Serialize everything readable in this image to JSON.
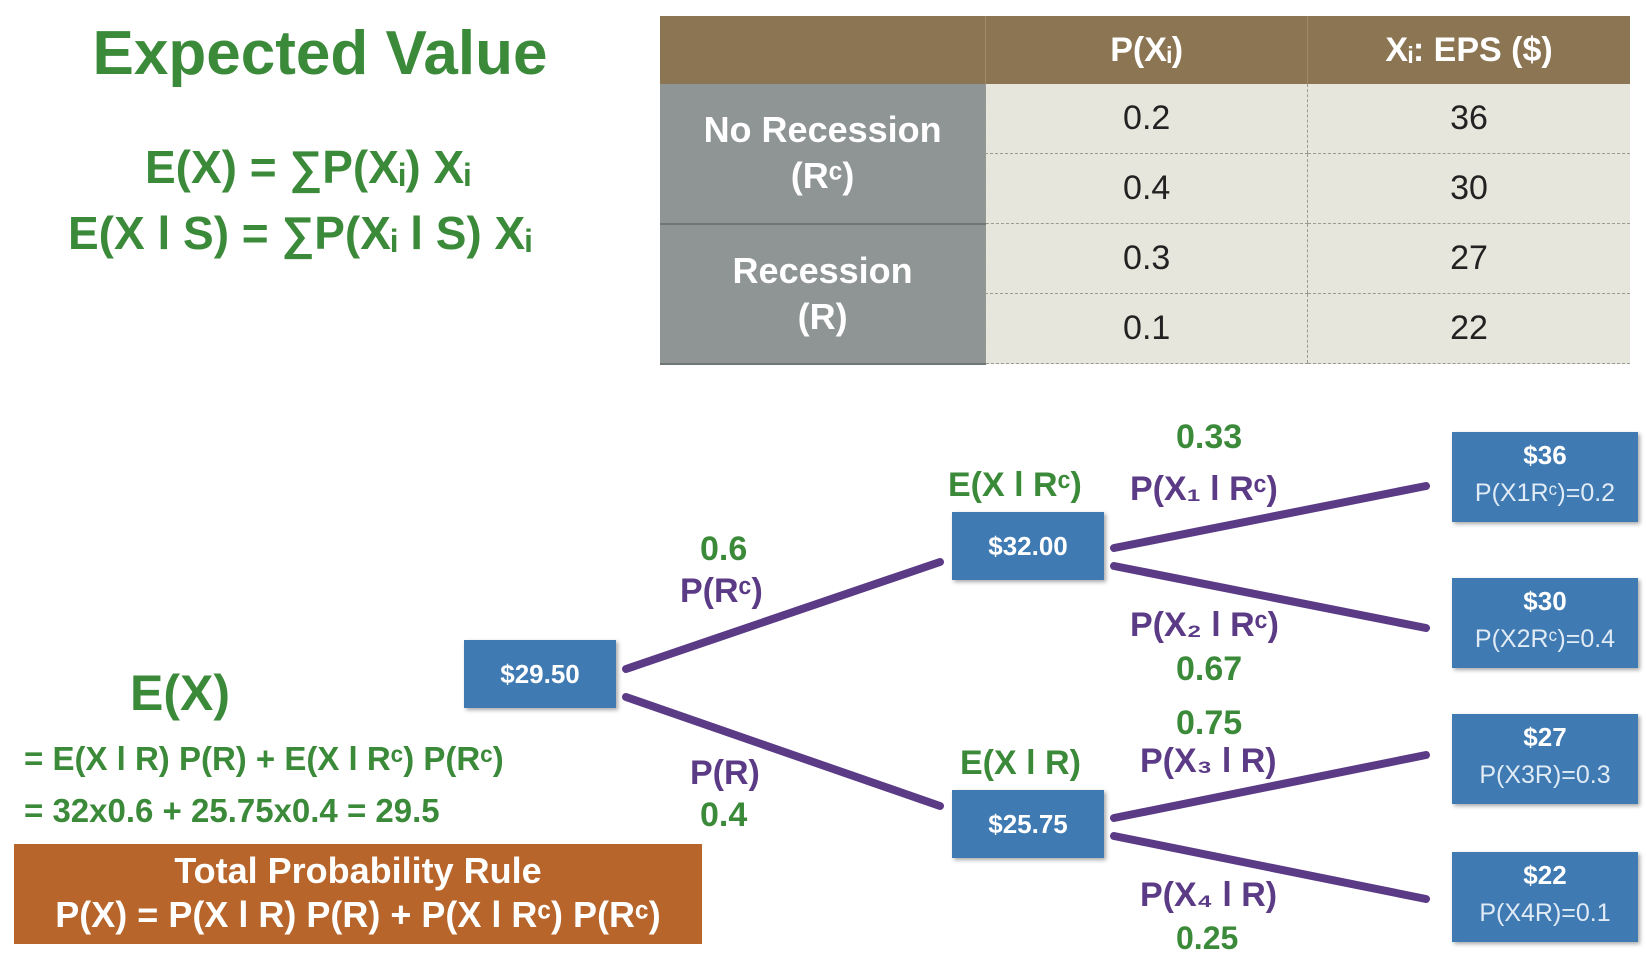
{
  "title": "Expected Value",
  "formulas": {
    "ex": "E(X) = ∑P(Xᵢ) Xᵢ",
    "exs": "E(X l S) = ∑P(Xᵢ l S) Xᵢ"
  },
  "table": {
    "headers": [
      "",
      "P(Xᵢ)",
      "Xᵢ: EPS ($)"
    ],
    "groups": [
      {
        "label_line1": "No Recession",
        "label_line2": "(Rᶜ)"
      },
      {
        "label_line1": "Recession",
        "label_line2": "(R)"
      }
    ],
    "rows": [
      {
        "p": "0.2",
        "eps": "36"
      },
      {
        "p": "0.4",
        "eps": "30"
      },
      {
        "p": "0.3",
        "eps": "27"
      },
      {
        "p": "0.1",
        "eps": "22"
      }
    ]
  },
  "tree": {
    "root": "$29.50",
    "mid_top": {
      "value": "$32.00",
      "label": "E(X l Rᶜ)"
    },
    "mid_bottom": {
      "value": "$25.75",
      "label": "E(X l R)"
    },
    "branch_root_top": {
      "prob": "0.6",
      "label": "P(Rᶜ)"
    },
    "branch_root_bottom": {
      "prob": "0.4",
      "label": "P(R)"
    },
    "branches": [
      {
        "prob": "0.33",
        "label": "P(X₁ l Rᶜ)"
      },
      {
        "prob": "0.67",
        "label": "P(X₂ l Rᶜ)"
      },
      {
        "prob": "0.75",
        "label": "P(X₃ l R)"
      },
      {
        "prob": "0.25",
        "label": "P(X₄ l R)"
      }
    ],
    "leaves": [
      {
        "amount": "$36",
        "prob": "P(X1Rᶜ)=0.2"
      },
      {
        "amount": "$30",
        "prob": "P(X2Rᶜ)=0.4"
      },
      {
        "amount": "$27",
        "prob": "P(X3R)=0.3"
      },
      {
        "amount": "$22",
        "prob": "P(X4R)=0.1"
      }
    ]
  },
  "calc": {
    "heading": "E(X)",
    "line1": "= E(X l R) P(R) + E(X l Rᶜ) P(Rᶜ)",
    "line2": "= 32x0.6 + 25.75x0.4 = 29.5"
  },
  "rule": {
    "title": "Total Probability Rule",
    "formula": "P(X) = P(X l R) P(R) + P(X l Rᶜ) P(Rᶜ)"
  },
  "colors": {
    "green": "#3b8a3a",
    "purple": "#5b3a86",
    "node_blue": "#3f7ab3",
    "header_brown": "#8c7552",
    "rowhead_gray": "#8e9594",
    "rule_orange": "#b7652a"
  }
}
